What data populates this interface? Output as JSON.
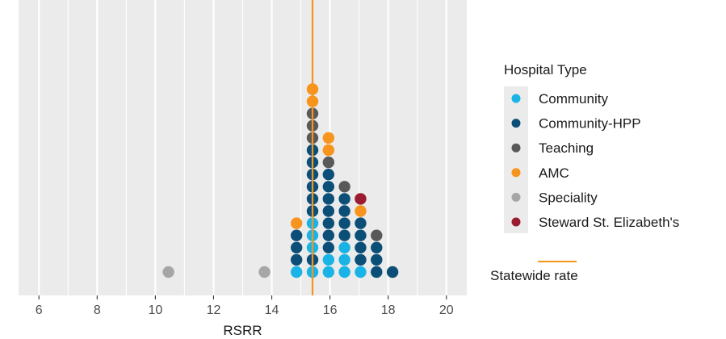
{
  "chart_data": {
    "type": "scatter",
    "subtype": "dot-plot",
    "xlabel": "RSRR",
    "ylabel": "",
    "xlim": [
      5.3,
      20.7
    ],
    "x_ticks": [
      6,
      8,
      10,
      12,
      14,
      16,
      18,
      20
    ],
    "x_tick_labels": [
      "6",
      "8",
      "10",
      "12",
      "14",
      "16",
      "18",
      "20"
    ],
    "grid": true,
    "legend_title": "Hospital Type",
    "legend_position": "right",
    "colors": {
      "Community": "#1ab3e6",
      "Community-HPP": "#0b4f78",
      "Teaching": "#595959",
      "AMC": "#f7941d",
      "Speciality": "#a6a6a6",
      "Steward St. Elizabeth's": "#9b1b30",
      "statewide": "#f7941d",
      "panel": "#ebebeb",
      "grid": "#ffffff"
    },
    "series_order": [
      "Community",
      "Community-HPP",
      "Teaching",
      "AMC",
      "Speciality",
      "Steward St. Elizabeth's"
    ],
    "reference_line": {
      "name": "Statewide rate",
      "x": 15.4,
      "legend_label": "Statewide rate"
    },
    "stacks": [
      {
        "x": 10.45,
        "stack": [
          "Speciality"
        ]
      },
      {
        "x": 13.75,
        "stack": [
          "Speciality"
        ]
      },
      {
        "x": 14.85,
        "stack": [
          "Community",
          "Community-HPP",
          "Community-HPP",
          "Community-HPP",
          "AMC"
        ]
      },
      {
        "x": 15.4,
        "stack": [
          "Community",
          "Community-HPP",
          "Community",
          "Community",
          "Community",
          "Community-HPP",
          "Community-HPP",
          "Community-HPP",
          "Community-HPP",
          "Community-HPP",
          "Community-HPP",
          "Teaching",
          "Teaching",
          "Teaching",
          "AMC",
          "AMC"
        ]
      },
      {
        "x": 15.95,
        "stack": [
          "Community",
          "Community",
          "Community-HPP",
          "Community-HPP",
          "Community-HPP",
          "Community-HPP",
          "Community-HPP",
          "Community-HPP",
          "Community-HPP",
          "Teaching",
          "AMC",
          "AMC"
        ]
      },
      {
        "x": 16.5,
        "stack": [
          "Community",
          "Community",
          "Community",
          "Community-HPP",
          "Community-HPP",
          "Community-HPP",
          "Community-HPP",
          "Teaching"
        ]
      },
      {
        "x": 17.05,
        "stack": [
          "Community",
          "Community-HPP",
          "Community-HPP",
          "Community-HPP",
          "Community-HPP",
          "AMC",
          "Steward St. Elizabeth's"
        ]
      },
      {
        "x": 17.6,
        "stack": [
          "Community-HPP",
          "Community-HPP",
          "Community-HPP",
          "Teaching"
        ]
      },
      {
        "x": 18.15,
        "stack": [
          "Community-HPP"
        ]
      }
    ]
  }
}
